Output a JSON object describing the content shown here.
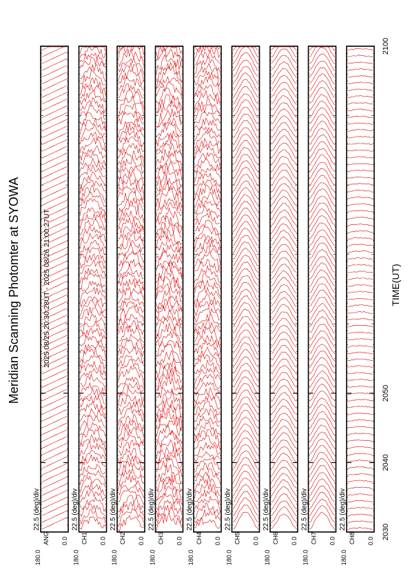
{
  "chart_data": {
    "type": "line",
    "title": "Meridian Scanning Photomter at SYOWA",
    "subtitle": "2025 08/25 20:30:28UT - 2025 08/26 21:00:27UT",
    "xlabel": "TIME(UT)",
    "x_ticks": [
      "2030",
      "2040",
      "2050",
      "2100"
    ],
    "xlim": [
      2030,
      2100
    ],
    "ylim": [
      0.0,
      180.0
    ],
    "y_tick_top": "180.0",
    "y_tick_bottom": "0.0",
    "scale_label": "22.5 (deg)/div",
    "line_color": "#e00000",
    "orientation": "rotated-90-ccw",
    "panels": [
      {
        "label": "ANG",
        "scan_count": 72,
        "style": "sweep"
      },
      {
        "label": "CH1",
        "scan_count": 72,
        "style": "noisy",
        "amplitude": 0.55
      },
      {
        "label": "CH2",
        "scan_count": 72,
        "style": "noisy",
        "amplitude": 0.6
      },
      {
        "label": "CH3",
        "scan_count": 72,
        "style": "noisy",
        "amplitude": 0.7
      },
      {
        "label": "CH4",
        "scan_count": 72,
        "style": "noisy",
        "amplitude": 0.55
      },
      {
        "label": "CH5",
        "scan_count": 72,
        "style": "smooth",
        "amplitude": 0.75
      },
      {
        "label": "CH6",
        "scan_count": 72,
        "style": "smooth",
        "amplitude": 0.65
      },
      {
        "label": "CH7",
        "scan_count": 72,
        "style": "smooth",
        "amplitude": 0.7
      },
      {
        "label": "CH8",
        "scan_count": 72,
        "style": "flat",
        "amplitude": 0.18
      }
    ]
  }
}
